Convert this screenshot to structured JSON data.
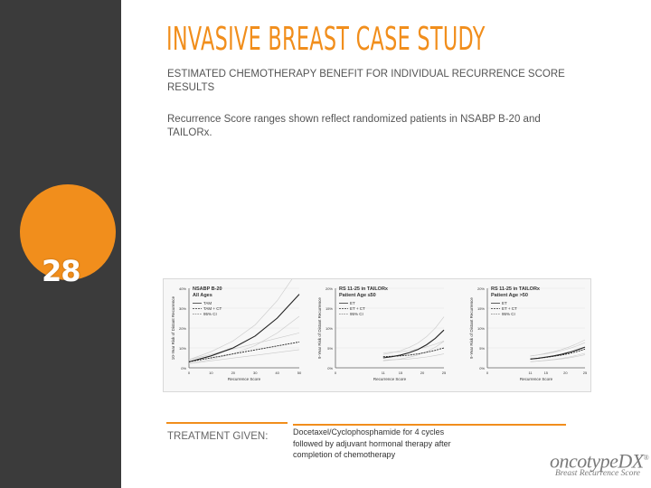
{
  "slide": {
    "title": "INVASIVE BREAST CASE STUDY",
    "subtitle": "ESTIMATED CHEMOTHERAPY BENEFIT FOR INDIVIDUAL RECURRENCE SCORE RESULTS",
    "note": "Recurrence Score ranges shown reflect randomized patients in NSABP B-20 and TAILORx.",
    "slide_number": "28",
    "treatment_label": "TREATMENT GIVEN:",
    "treatment_text": "Docetaxel/Cyclophosphamide for 4 cycles followed by adjuvant hormonal therapy after completion of chemotherapy",
    "logo_prefix": "oncotype",
    "logo_dx": "DX",
    "logo_trademark": "®",
    "logo_subtitle": "Breast Recurrence Score"
  },
  "colors": {
    "accent": "#f18e1c",
    "sidebar": "#3b3b3b",
    "text": "#555555"
  },
  "chart_data": [
    {
      "type": "line",
      "title": "NSABP B-20",
      "subtitle": "All Ages",
      "xlabel": "Recurrence Score",
      "ylabel": "10-Year Risk of Distant Recurrence",
      "x_ticks": [
        "0",
        "10",
        "20",
        "30",
        "40",
        "50"
      ],
      "y_ticks": [
        "40%",
        "30%",
        "20%",
        "10%",
        "0%"
      ],
      "legend": [
        "TAM",
        "TAM + CT",
        "95% CI"
      ],
      "series": [
        {
          "name": "TAM",
          "x": [
            0,
            10,
            20,
            30,
            40,
            50
          ],
          "y": [
            3,
            6,
            10,
            16,
            25,
            37
          ]
        },
        {
          "name": "TAM + CT",
          "x": [
            0,
            10,
            20,
            30,
            40,
            50
          ],
          "y": [
            3,
            5,
            7,
            9,
            11,
            13
          ]
        }
      ]
    },
    {
      "type": "line",
      "title": "RS 11-25 in TAILORx",
      "subtitle": "Patient Age ≤50",
      "xlabel": "Recurrence Score",
      "ylabel": "9-Year Risk of Distant Recurrence",
      "x_ticks": [
        "0",
        "11",
        "15",
        "20",
        "25"
      ],
      "y_ticks": [
        "20%",
        "15%",
        "10%",
        "5%",
        "0%"
      ],
      "legend": [
        "ET",
        "ET + CT",
        "95% CI"
      ],
      "series": [
        {
          "name": "ET",
          "x": [
            11,
            13,
            15,
            17,
            19,
            21,
            23,
            25
          ],
          "y": [
            2.5,
            2.8,
            3.2,
            3.8,
            4.6,
            5.8,
            7.4,
            9.5
          ]
        },
        {
          "name": "ET + CT",
          "x": [
            11,
            13,
            15,
            17,
            19,
            21,
            23,
            25
          ],
          "y": [
            2.8,
            2.9,
            3.0,
            3.2,
            3.5,
            3.9,
            4.4,
            5.0
          ]
        }
      ]
    },
    {
      "type": "line",
      "title": "RS 11-25 in TAILORx",
      "subtitle": "Patient Age >50",
      "xlabel": "Recurrence Score",
      "ylabel": "9-Year Risk of Distant Recurrence",
      "x_ticks": [
        "0",
        "11",
        "15",
        "20",
        "25"
      ],
      "y_ticks": [
        "20%",
        "15%",
        "10%",
        "5%",
        "0%"
      ],
      "legend": [
        "ET",
        "ET + CT",
        "95% CI"
      ],
      "series": [
        {
          "name": "ET",
          "x": [
            11,
            13,
            15,
            17,
            19,
            21,
            23,
            25
          ],
          "y": [
            2.2,
            2.4,
            2.7,
            3.0,
            3.4,
            3.9,
            4.5,
            5.2
          ]
        },
        {
          "name": "ET + CT",
          "x": [
            11,
            13,
            15,
            17,
            19,
            21,
            23,
            25
          ],
          "y": [
            2.2,
            2.4,
            2.6,
            2.9,
            3.2,
            3.6,
            4.1,
            4.7
          ]
        }
      ]
    }
  ]
}
